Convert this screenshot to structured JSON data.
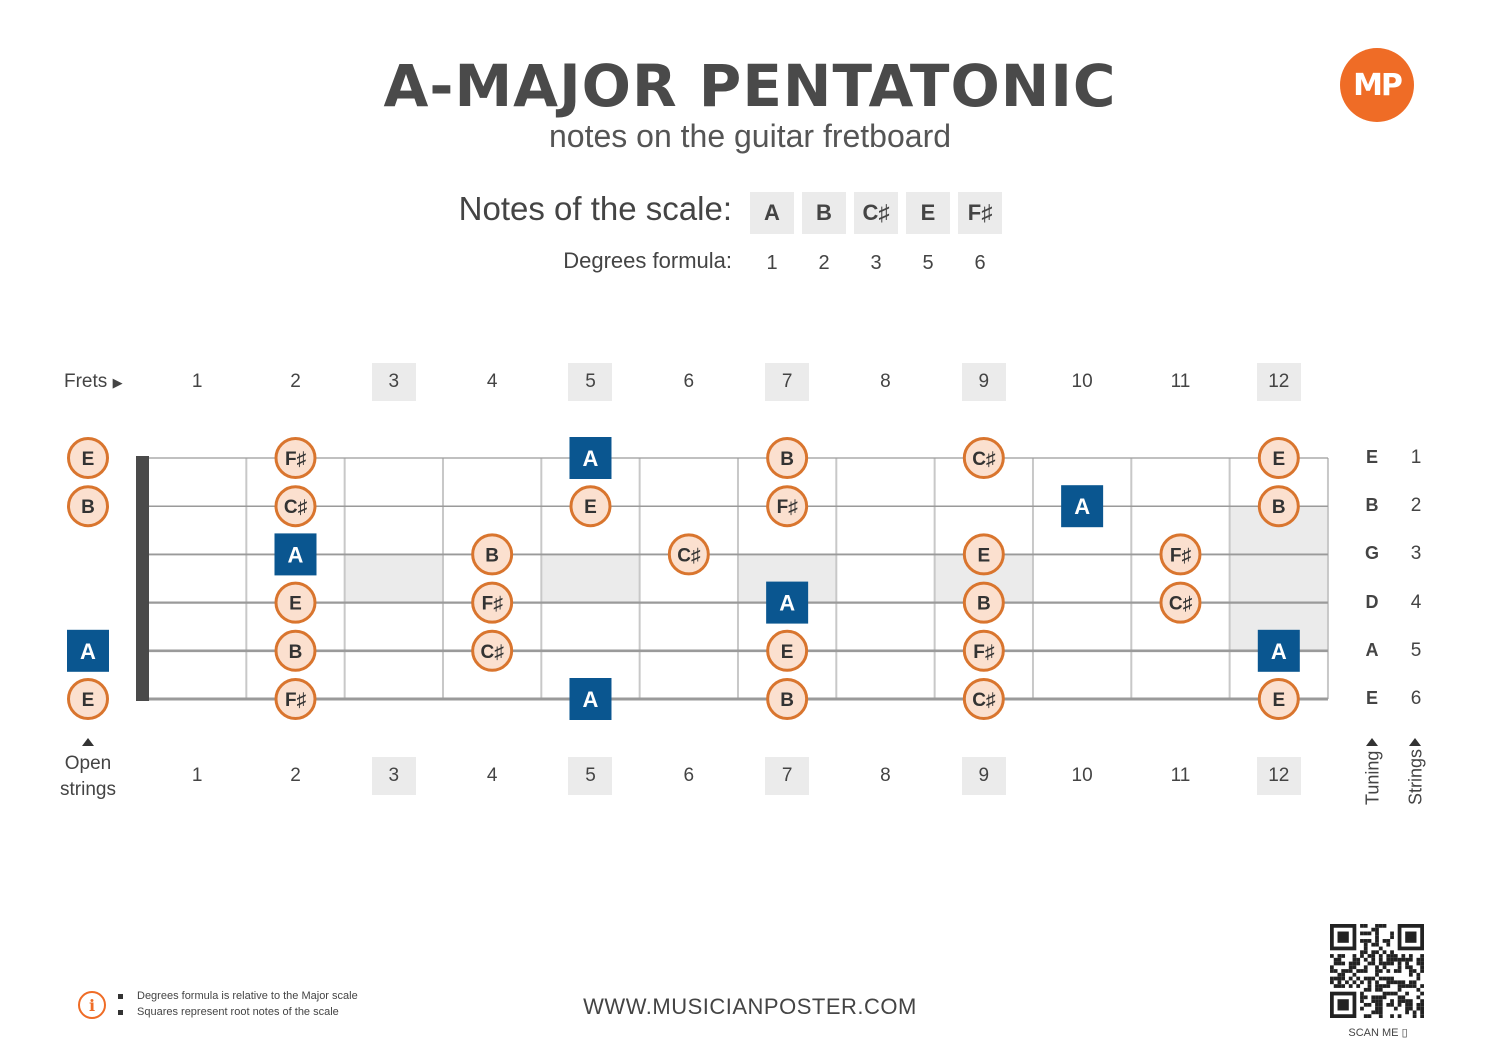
{
  "title": "A-MAJOR PENTATONIC",
  "subtitle": "notes on the guitar fretboard",
  "logo": {
    "text": "MP",
    "color": "#ef6c26"
  },
  "scale": {
    "label": "Notes of the scale:",
    "notes": [
      "A",
      "B",
      "C♯",
      "E",
      "F♯"
    ],
    "degrees_label": "Degrees formula:",
    "degrees": [
      "1",
      "2",
      "3",
      "5",
      "6"
    ]
  },
  "frets": {
    "label": "Frets",
    "numbers": [
      "1",
      "2",
      "3",
      "4",
      "5",
      "6",
      "7",
      "8",
      "9",
      "10",
      "11",
      "12"
    ],
    "highlighted": [
      3,
      5,
      7,
      9,
      12
    ],
    "open_label_line1": "Open",
    "open_label_line2": "strings"
  },
  "strings": {
    "tuning": [
      "E",
      "B",
      "G",
      "D",
      "A",
      "E"
    ],
    "numbers": [
      "1",
      "2",
      "3",
      "4",
      "5",
      "6"
    ],
    "tuning_label": "Tuning",
    "strings_label": "Strings"
  },
  "colors": {
    "root": "#0a5690",
    "note_fill": "#fbe0cf",
    "note_border": "#d9752e",
    "inlay": "#ebebeb"
  },
  "notes_on_board": [
    {
      "string": 1,
      "fret": 0,
      "note": "E"
    },
    {
      "string": 1,
      "fret": 2,
      "note": "F♯"
    },
    {
      "string": 1,
      "fret": 5,
      "note": "A",
      "root": true
    },
    {
      "string": 1,
      "fret": 7,
      "note": "B"
    },
    {
      "string": 1,
      "fret": 9,
      "note": "C♯"
    },
    {
      "string": 1,
      "fret": 12,
      "note": "E"
    },
    {
      "string": 2,
      "fret": 0,
      "note": "B"
    },
    {
      "string": 2,
      "fret": 2,
      "note": "C♯"
    },
    {
      "string": 2,
      "fret": 5,
      "note": "E"
    },
    {
      "string": 2,
      "fret": 7,
      "note": "F♯"
    },
    {
      "string": 2,
      "fret": 10,
      "note": "A",
      "root": true
    },
    {
      "string": 2,
      "fret": 12,
      "note": "B"
    },
    {
      "string": 3,
      "fret": 2,
      "note": "A",
      "root": true
    },
    {
      "string": 3,
      "fret": 4,
      "note": "B"
    },
    {
      "string": 3,
      "fret": 6,
      "note": "C♯"
    },
    {
      "string": 3,
      "fret": 9,
      "note": "E"
    },
    {
      "string": 3,
      "fret": 11,
      "note": "F♯"
    },
    {
      "string": 4,
      "fret": 2,
      "note": "E"
    },
    {
      "string": 4,
      "fret": 4,
      "note": "F♯"
    },
    {
      "string": 4,
      "fret": 7,
      "note": "A",
      "root": true
    },
    {
      "string": 4,
      "fret": 9,
      "note": "B"
    },
    {
      "string": 4,
      "fret": 11,
      "note": "C♯"
    },
    {
      "string": 5,
      "fret": 0,
      "note": "A",
      "root": true
    },
    {
      "string": 5,
      "fret": 2,
      "note": "B"
    },
    {
      "string": 5,
      "fret": 4,
      "note": "C♯"
    },
    {
      "string": 5,
      "fret": 7,
      "note": "E"
    },
    {
      "string": 5,
      "fret": 9,
      "note": "F♯"
    },
    {
      "string": 5,
      "fret": 12,
      "note": "A",
      "root": true
    },
    {
      "string": 6,
      "fret": 0,
      "note": "E"
    },
    {
      "string": 6,
      "fret": 2,
      "note": "F♯"
    },
    {
      "string": 6,
      "fret": 5,
      "note": "A",
      "root": true
    },
    {
      "string": 6,
      "fret": 7,
      "note": "B"
    },
    {
      "string": 6,
      "fret": 9,
      "note": "C♯"
    },
    {
      "string": 6,
      "fret": 12,
      "note": "E"
    }
  ],
  "footer": {
    "url": "WWW.MUSICIANPOSTER.COM",
    "notes": [
      "Degrees formula is relative to the Major scale",
      "Squares represent root notes of the scale"
    ],
    "scan_label": "SCAN ME"
  }
}
